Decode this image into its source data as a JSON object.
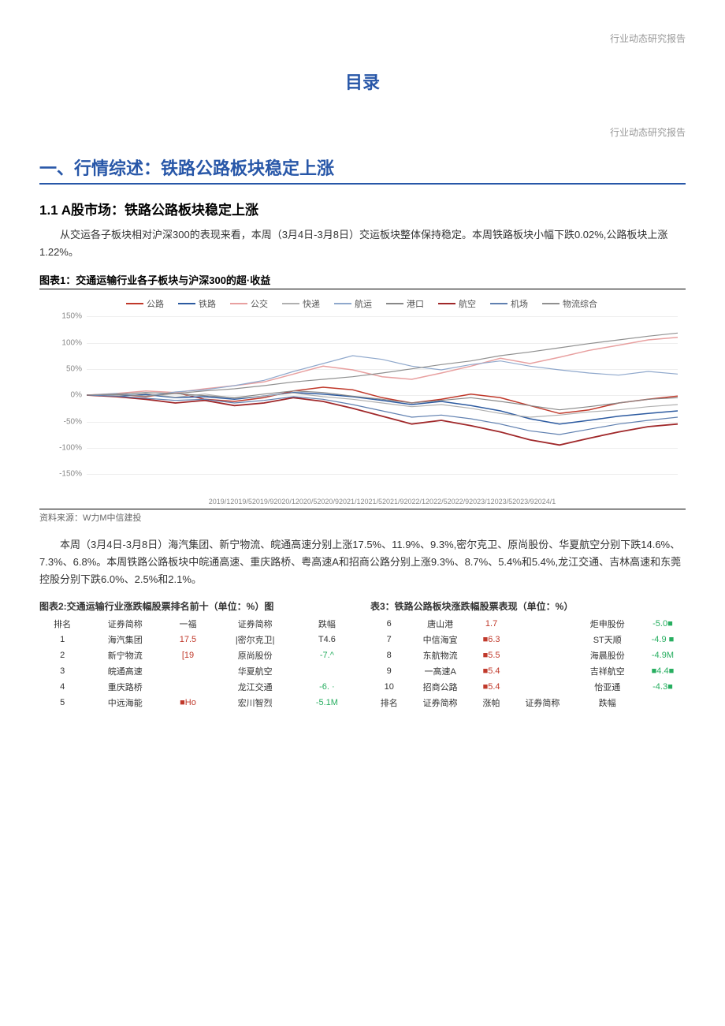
{
  "header": {
    "tag": "行业动态研究报告"
  },
  "toc": {
    "title": "目录"
  },
  "section1": {
    "heading": "一、行情综述：铁路公路板块稳定上涨",
    "sub1": {
      "heading": "1.1  A股市场：铁路公路板块稳定上涨",
      "p1": "从交运各子板块相对沪深300的表现来看，本周（3月4日-3月8日）交运板块整体保持稳定。本周铁路板块小幅下跌0.02%,公路板块上涨1.22%。",
      "p2": "本周（3月4日-3月8日）海汽集团、新宁物流、皖通高速分别上涨17.5%、11.9%、9.3%,密尔克卫、原尚股份、华夏航空分别下跌14.6%、7.3%、6.8%。本周铁路公路板块中皖通高速、重庆路桥、粤高速A和招商公路分别上涨9.3%、8.7%、5.4%和5.4%,龙江交通、吉林高速和东莞控股分别下跌6.0%、2.5%和2.1%。"
    }
  },
  "chart1": {
    "title": "图表1：交通运输行业各子板块与沪深300的超·收益",
    "type": "line",
    "ylim": [
      -150,
      150
    ],
    "ytick_step": 50,
    "yticks": [
      "150%",
      "100%",
      "50%",
      "0%",
      "-50%",
      "-100%",
      "-150%"
    ],
    "xaxis_text": "2019/12019/52019/92020/12020/52020/92021/12021/52021/92022/12022/52022/92023/12023/52023/92024/1",
    "grid_color": "#eeeeee",
    "background_color": "#ffffff",
    "legend": [
      {
        "label": "公路",
        "color": "#c0392b"
      },
      {
        "label": "铁路",
        "color": "#2c5aa0"
      },
      {
        "label": "公交",
        "color": "#e8a0a0"
      },
      {
        "label": "快递",
        "color": "#b0b0b0"
      },
      {
        "label": "航运",
        "color": "#8fa8cc"
      },
      {
        "label": "港口",
        "color": "#888888"
      },
      {
        "label": "航空",
        "color": "#a0282a"
      },
      {
        "label": "机场",
        "color": "#6080b0"
      },
      {
        "label": "物流综合",
        "color": "#909090"
      }
    ],
    "series": [
      {
        "color": "#c0392b",
        "width": 1.5,
        "points": [
          [
            0,
            0
          ],
          [
            5,
            2
          ],
          [
            10,
            -3
          ],
          [
            15,
            5
          ],
          [
            20,
            -8
          ],
          [
            25,
            -12
          ],
          [
            30,
            -5
          ],
          [
            35,
            8
          ],
          [
            40,
            15
          ],
          [
            45,
            10
          ],
          [
            50,
            -5
          ],
          [
            55,
            -15
          ],
          [
            60,
            -8
          ],
          [
            65,
            2
          ],
          [
            70,
            -5
          ],
          [
            75,
            -20
          ],
          [
            80,
            -35
          ],
          [
            85,
            -28
          ],
          [
            90,
            -15
          ],
          [
            95,
            -8
          ],
          [
            100,
            -2
          ]
        ]
      },
      {
        "color": "#2c5aa0",
        "width": 1.5,
        "points": [
          [
            0,
            0
          ],
          [
            5,
            -2
          ],
          [
            10,
            1
          ],
          [
            15,
            -5
          ],
          [
            20,
            -3
          ],
          [
            25,
            -8
          ],
          [
            30,
            -2
          ],
          [
            35,
            5
          ],
          [
            40,
            2
          ],
          [
            45,
            -3
          ],
          [
            50,
            -10
          ],
          [
            55,
            -18
          ],
          [
            60,
            -12
          ],
          [
            65,
            -20
          ],
          [
            70,
            -30
          ],
          [
            75,
            -45
          ],
          [
            80,
            -55
          ],
          [
            85,
            -48
          ],
          [
            90,
            -40
          ],
          [
            95,
            -35
          ],
          [
            100,
            -30
          ]
        ]
      },
      {
        "color": "#e8a0a0",
        "width": 1.5,
        "points": [
          [
            0,
            0
          ],
          [
            5,
            3
          ],
          [
            10,
            8
          ],
          [
            15,
            5
          ],
          [
            20,
            12
          ],
          [
            25,
            18
          ],
          [
            30,
            25
          ],
          [
            35,
            40
          ],
          [
            40,
            55
          ],
          [
            45,
            48
          ],
          [
            50,
            35
          ],
          [
            55,
            30
          ],
          [
            60,
            42
          ],
          [
            65,
            55
          ],
          [
            70,
            70
          ],
          [
            75,
            60
          ],
          [
            80,
            72
          ],
          [
            85,
            85
          ],
          [
            90,
            95
          ],
          [
            95,
            105
          ],
          [
            100,
            110
          ]
        ]
      },
      {
        "color": "#b0b0b0",
        "width": 1.2,
        "points": [
          [
            0,
            0
          ],
          [
            5,
            -1
          ],
          [
            10,
            3
          ],
          [
            15,
            -4
          ],
          [
            20,
            2
          ],
          [
            25,
            -6
          ],
          [
            30,
            -2
          ],
          [
            35,
            4
          ],
          [
            40,
            -3
          ],
          [
            45,
            -8
          ],
          [
            50,
            -15
          ],
          [
            55,
            -22
          ],
          [
            60,
            -18
          ],
          [
            65,
            -25
          ],
          [
            70,
            -35
          ],
          [
            75,
            -42
          ],
          [
            80,
            -38
          ],
          [
            85,
            -32
          ],
          [
            90,
            -28
          ],
          [
            95,
            -22
          ],
          [
            100,
            -18
          ]
        ]
      },
      {
        "color": "#8fa8cc",
        "width": 1.2,
        "points": [
          [
            0,
            0
          ],
          [
            5,
            3
          ],
          [
            10,
            -2
          ],
          [
            15,
            6
          ],
          [
            20,
            10
          ],
          [
            25,
            18
          ],
          [
            30,
            28
          ],
          [
            35,
            45
          ],
          [
            40,
            60
          ],
          [
            45,
            75
          ],
          [
            50,
            68
          ],
          [
            55,
            55
          ],
          [
            60,
            48
          ],
          [
            65,
            58
          ],
          [
            70,
            65
          ],
          [
            75,
            55
          ],
          [
            80,
            48
          ],
          [
            85,
            42
          ],
          [
            90,
            38
          ],
          [
            95,
            45
          ],
          [
            100,
            40
          ]
        ]
      },
      {
        "color": "#888888",
        "width": 1.2,
        "points": [
          [
            0,
            0
          ],
          [
            5,
            1
          ],
          [
            10,
            -2
          ],
          [
            15,
            3
          ],
          [
            20,
            -1
          ],
          [
            25,
            -5
          ],
          [
            30,
            2
          ],
          [
            35,
            8
          ],
          [
            40,
            5
          ],
          [
            45,
            -2
          ],
          [
            50,
            -8
          ],
          [
            55,
            -15
          ],
          [
            60,
            -10
          ],
          [
            65,
            -5
          ],
          [
            70,
            -12
          ],
          [
            75,
            -20
          ],
          [
            80,
            -28
          ],
          [
            85,
            -22
          ],
          [
            90,
            -15
          ],
          [
            95,
            -8
          ],
          [
            100,
            -5
          ]
        ]
      },
      {
        "color": "#a0282a",
        "width": 1.8,
        "points": [
          [
            0,
            0
          ],
          [
            5,
            -3
          ],
          [
            10,
            -8
          ],
          [
            15,
            -15
          ],
          [
            20,
            -10
          ],
          [
            25,
            -20
          ],
          [
            30,
            -15
          ],
          [
            35,
            -5
          ],
          [
            40,
            -12
          ],
          [
            45,
            -25
          ],
          [
            50,
            -40
          ],
          [
            55,
            -55
          ],
          [
            60,
            -48
          ],
          [
            65,
            -58
          ],
          [
            70,
            -70
          ],
          [
            75,
            -85
          ],
          [
            80,
            -95
          ],
          [
            85,
            -82
          ],
          [
            90,
            -70
          ],
          [
            95,
            -60
          ],
          [
            100,
            -55
          ]
        ]
      },
      {
        "color": "#6080b0",
        "width": 1.2,
        "points": [
          [
            0,
            0
          ],
          [
            5,
            -2
          ],
          [
            10,
            -6
          ],
          [
            15,
            -10
          ],
          [
            20,
            -8
          ],
          [
            25,
            -15
          ],
          [
            30,
            -10
          ],
          [
            35,
            -3
          ],
          [
            40,
            -8
          ],
          [
            45,
            -18
          ],
          [
            50,
            -30
          ],
          [
            55,
            -42
          ],
          [
            60,
            -38
          ],
          [
            65,
            -45
          ],
          [
            70,
            -55
          ],
          [
            75,
            -68
          ],
          [
            80,
            -75
          ],
          [
            85,
            -65
          ],
          [
            90,
            -55
          ],
          [
            95,
            -48
          ],
          [
            100,
            -42
          ]
        ]
      },
      {
        "color": "#909090",
        "width": 1.2,
        "points": [
          [
            0,
            0
          ],
          [
            5,
            2
          ],
          [
            10,
            5
          ],
          [
            15,
            3
          ],
          [
            20,
            8
          ],
          [
            25,
            12
          ],
          [
            30,
            18
          ],
          [
            35,
            25
          ],
          [
            40,
            30
          ],
          [
            45,
            35
          ],
          [
            50,
            42
          ],
          [
            55,
            50
          ],
          [
            60,
            58
          ],
          [
            65,
            65
          ],
          [
            70,
            75
          ],
          [
            75,
            82
          ],
          [
            80,
            90
          ],
          [
            85,
            98
          ],
          [
            90,
            105
          ],
          [
            95,
            112
          ],
          [
            100,
            118
          ]
        ]
      }
    ],
    "source": "资料来源：W力M中信建投"
  },
  "table2": {
    "title": "图表2:交通运输行业涨跌幅股票排名前十（单位：%）图",
    "headers": [
      "排名",
      "证券简称",
      "一福",
      "证券简称",
      "跌幅"
    ],
    "rows": [
      [
        "1",
        "海汽集团",
        "17.5",
        "|密尔克卫|",
        "T4.6"
      ],
      [
        "2",
        "新宁物流",
        "[19",
        "原尚股份",
        "-7.^"
      ],
      [
        "3",
        "皖通高速",
        "",
        "华夏航空",
        ""
      ],
      [
        "4",
        "重庆路桥",
        "",
        "龙江交通",
        "-6. ·"
      ],
      [
        "5",
        "中远海能",
        "■Ho",
        "宏川智烈",
        "-5.1M"
      ]
    ],
    "row_colors_up": [
      "#c0392b",
      "#c0392b",
      "",
      "",
      "#c0392b"
    ],
    "row_colors_down": [
      "",
      "#27ae60",
      "",
      "#27ae60",
      "#27ae60"
    ]
  },
  "table3": {
    "title": "表3：铁路公路板块涨跌幅股票表现（单位：%）",
    "rows_top": [
      [
        "6",
        "唐山港",
        "1.7",
        "",
        "炬申股份",
        "-5.0■"
      ],
      [
        "7",
        "中信海宜",
        "■6.3",
        "",
        "ST天顺",
        "-4.9 ■"
      ],
      [
        "8",
        "东航物流",
        "■5.5",
        "",
        "海晨股份",
        "-4.9M"
      ],
      [
        "9",
        "一高速A",
        "■5.4",
        "",
        "吉祥航空",
        "■4.4■"
      ],
      [
        "10",
        "招商公路",
        "■5.4",
        "",
        "怡亚通",
        "-4.3■"
      ]
    ],
    "headers_bottom": [
      "排名",
      "证券简称",
      "涨帕",
      "证券简称",
      "跌幅"
    ]
  },
  "colors": {
    "primary": "#2857a8",
    "up": "#c0392b",
    "down": "#27ae60",
    "text": "#333333",
    "muted": "#999999"
  }
}
